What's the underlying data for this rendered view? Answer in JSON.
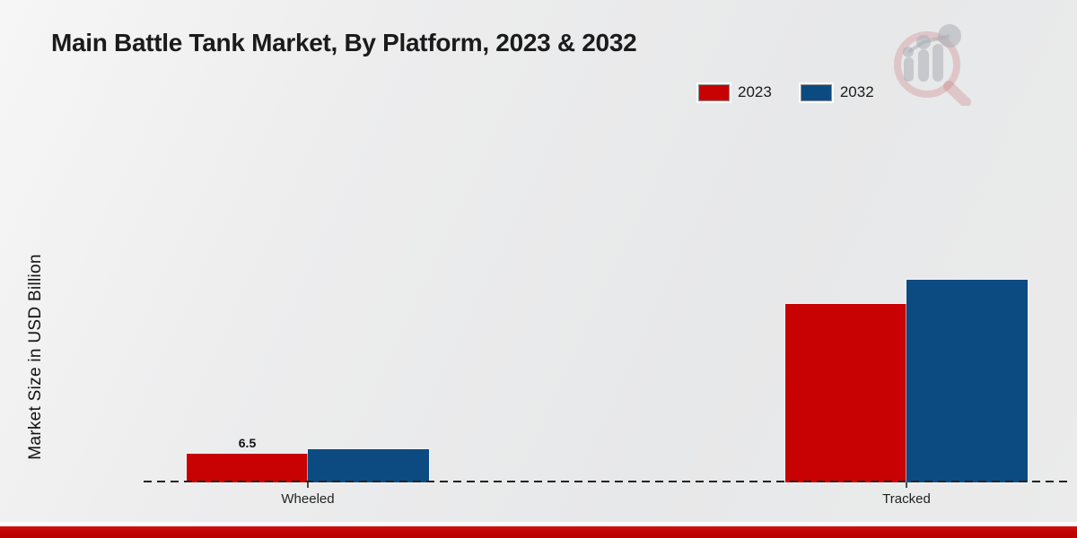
{
  "title": "Main Battle Tank Market, By Platform, 2023 & 2032",
  "ylabel": "Market Size in USD Billion",
  "legend": [
    {
      "label": "2023",
      "color": "#c80202"
    },
    {
      "label": "2032",
      "color": "#0b4b82"
    }
  ],
  "chart_data": {
    "type": "bar",
    "title": "Main Battle Tank Market, By Platform, 2023 & 2032",
    "xlabel": "",
    "ylabel": "Market Size in USD Billion",
    "categories": [
      "Wheeled",
      "Tracked"
    ],
    "series": [
      {
        "name": "2023",
        "color": "#c80202",
        "values": [
          6.5,
          40.4
        ]
      },
      {
        "name": "2032",
        "color": "#0b4b82",
        "values": [
          7.5,
          46.0
        ]
      }
    ],
    "bar_labels": [
      {
        "category": "Wheeled",
        "series": "2023",
        "text": "6.5"
      }
    ],
    "ylim": [
      0,
      80
    ],
    "grid": false,
    "legend_position": "top-right",
    "baseline_style": "dashed",
    "y_axis_ticks_visible": false
  },
  "branding": {
    "logo": "market-research-magnifier-logo",
    "footer_accent_color": "#bd0303"
  }
}
